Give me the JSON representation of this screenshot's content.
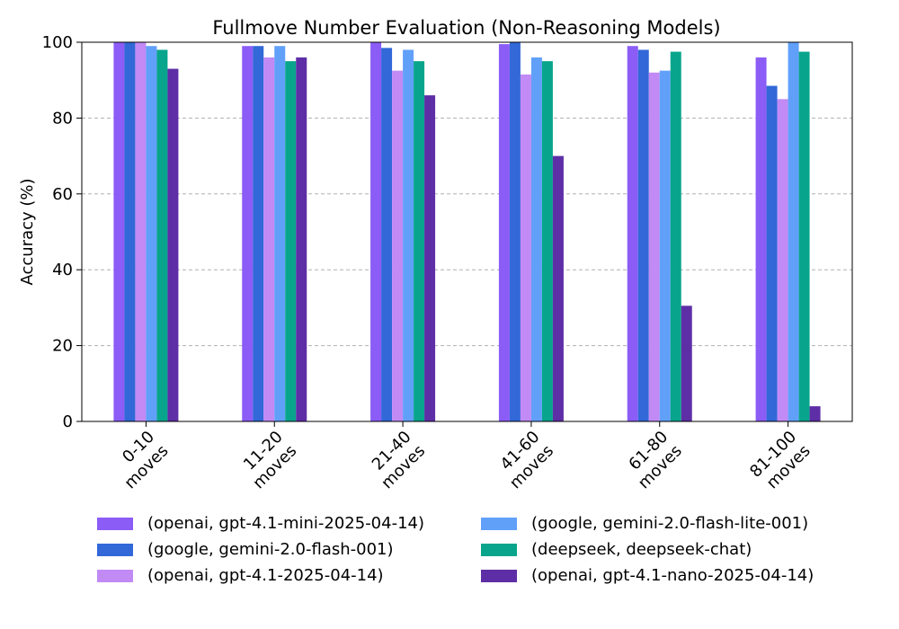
{
  "chart_data": {
    "type": "bar",
    "title": "Fullmove Number Evaluation (Non-Reasoning Models)",
    "xlabel": "",
    "ylabel": "Accuracy (%)",
    "ylim": [
      0,
      100
    ],
    "yticks": [
      "0",
      "20",
      "40",
      "60",
      "80",
      "100"
    ],
    "grid": "horizontal dashed",
    "legend_placement": "below plot, two columns",
    "categories": [
      [
        "0-10",
        "moves"
      ],
      [
        "11-20",
        "moves"
      ],
      [
        "21-40",
        "moves"
      ],
      [
        "41-60",
        "moves"
      ],
      [
        "61-80",
        "moves"
      ],
      [
        "81-100",
        "moves"
      ]
    ],
    "series": [
      {
        "name": "(openai, gpt-4.1-mini-2025-04-14)",
        "color": "#8b5cf6",
        "values": [
          100,
          99,
          100,
          99.5,
          99,
          96
        ]
      },
      {
        "name": "(google, gemini-2.0-flash-001)",
        "color": "#3268d8",
        "values": [
          100,
          99,
          98.5,
          100,
          98,
          88.5
        ]
      },
      {
        "name": "(openai, gpt-4.1-2025-04-14)",
        "color": "#c18af5",
        "values": [
          100,
          96,
          92.5,
          91.5,
          92,
          85
        ]
      },
      {
        "name": "(google, gemini-2.0-flash-lite-001)",
        "color": "#61a0f9",
        "values": [
          99,
          99,
          98,
          96,
          92.5,
          100
        ]
      },
      {
        "name": "(deepseek, deepseek-chat)",
        "color": "#08a58c",
        "values": [
          98,
          95,
          95,
          95,
          97.5,
          97.5
        ]
      },
      {
        "name": "(openai, gpt-4.1-nano-2025-04-14)",
        "color": "#5e2ea6",
        "values": [
          93,
          96,
          86,
          70,
          30.5,
          4
        ]
      }
    ]
  }
}
